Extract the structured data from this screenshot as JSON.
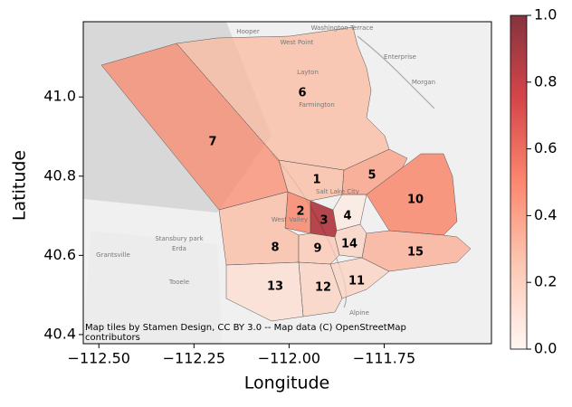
{
  "chart_data": {
    "type": "choropleth",
    "xlabel": "Longitude",
    "ylabel": "Latitude",
    "xlim": [
      -112.541,
      -111.468
    ],
    "ylim": [
      40.377,
      41.19
    ],
    "xticks": [
      {
        "value": -112.5,
        "label": "−112.50"
      },
      {
        "value": -112.25,
        "label": "−112.25"
      },
      {
        "value": -112.0,
        "label": "−112.00"
      },
      {
        "value": -111.75,
        "label": "−111.75"
      }
    ],
    "yticks": [
      40.4,
      40.6,
      40.8,
      {
        "value": 41.0,
        "label": "41.0"
      }
    ],
    "categories": [
      "1",
      "2",
      "3",
      "4",
      "5",
      "6",
      "7",
      "8",
      "9",
      "10",
      "11",
      "12",
      "13",
      "14",
      "15"
    ],
    "values": [
      0.25,
      0.45,
      0.85,
      0.05,
      0.35,
      0.25,
      0.4,
      0.25,
      0.2,
      0.45,
      0.15,
      0.15,
      0.1,
      0.15,
      0.3
    ],
    "colormap": "Reds",
    "colorbar": {
      "lim": [
        0,
        1
      ],
      "ticks": [
        {
          "value": 0,
          "label": "0.0"
        },
        0.2,
        0.4,
        0.6,
        0.8,
        {
          "value": 1,
          "label": "1.0"
        }
      ]
    },
    "basemap_labels": [
      "Hooper",
      "Washington Terrace",
      "West Point",
      "Enterprise",
      "Morgan",
      "Layton",
      "Farmington",
      "Salt Lake City",
      "West Valley",
      "Stansbury park",
      "Erda",
      "Grantsville",
      "Tooele",
      "Alpine"
    ],
    "attribution": [
      "Map tiles by Stamen Design, CC BY 3.0 -- Map data (C) OpenStreetMap",
      "contributors"
    ]
  }
}
